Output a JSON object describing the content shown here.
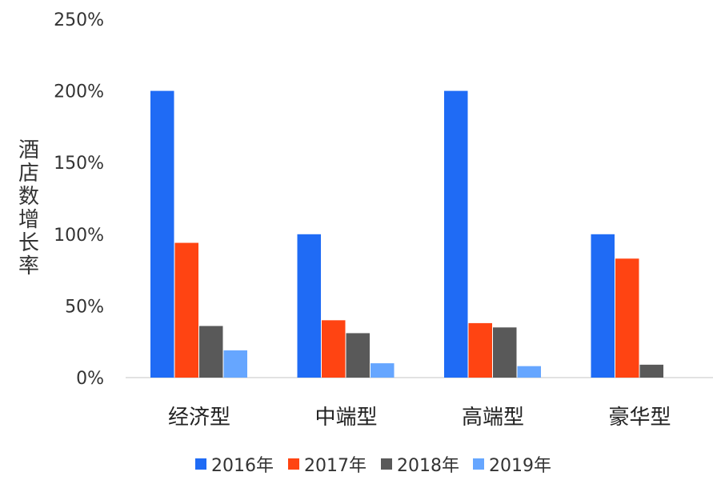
{
  "chart_data": {
    "type": "bar",
    "categories": [
      "经济型",
      "中端型",
      "高端型",
      "豪华型"
    ],
    "series": [
      {
        "name": "2016年",
        "color": "#1f6bf5",
        "values": [
          200,
          100,
          200,
          100
        ]
      },
      {
        "name": "2017年",
        "color": "#ff4412",
        "values": [
          94,
          40,
          38,
          83
        ]
      },
      {
        "name": "2018年",
        "color": "#595959",
        "values": [
          36,
          31,
          35,
          9
        ]
      },
      {
        "name": "2019年",
        "color": "#66a6ff",
        "values": [
          19,
          10,
          8,
          0
        ]
      }
    ],
    "ylabel": "酒店数增长率",
    "ylim": [
      0,
      250
    ],
    "yticks": [
      0,
      50,
      100,
      150,
      200,
      250
    ],
    "ytick_labels": [
      "0%",
      "50%",
      "100%",
      "150%",
      "200%",
      "250%"
    ],
    "grid": false,
    "legend_position": "bottom"
  }
}
